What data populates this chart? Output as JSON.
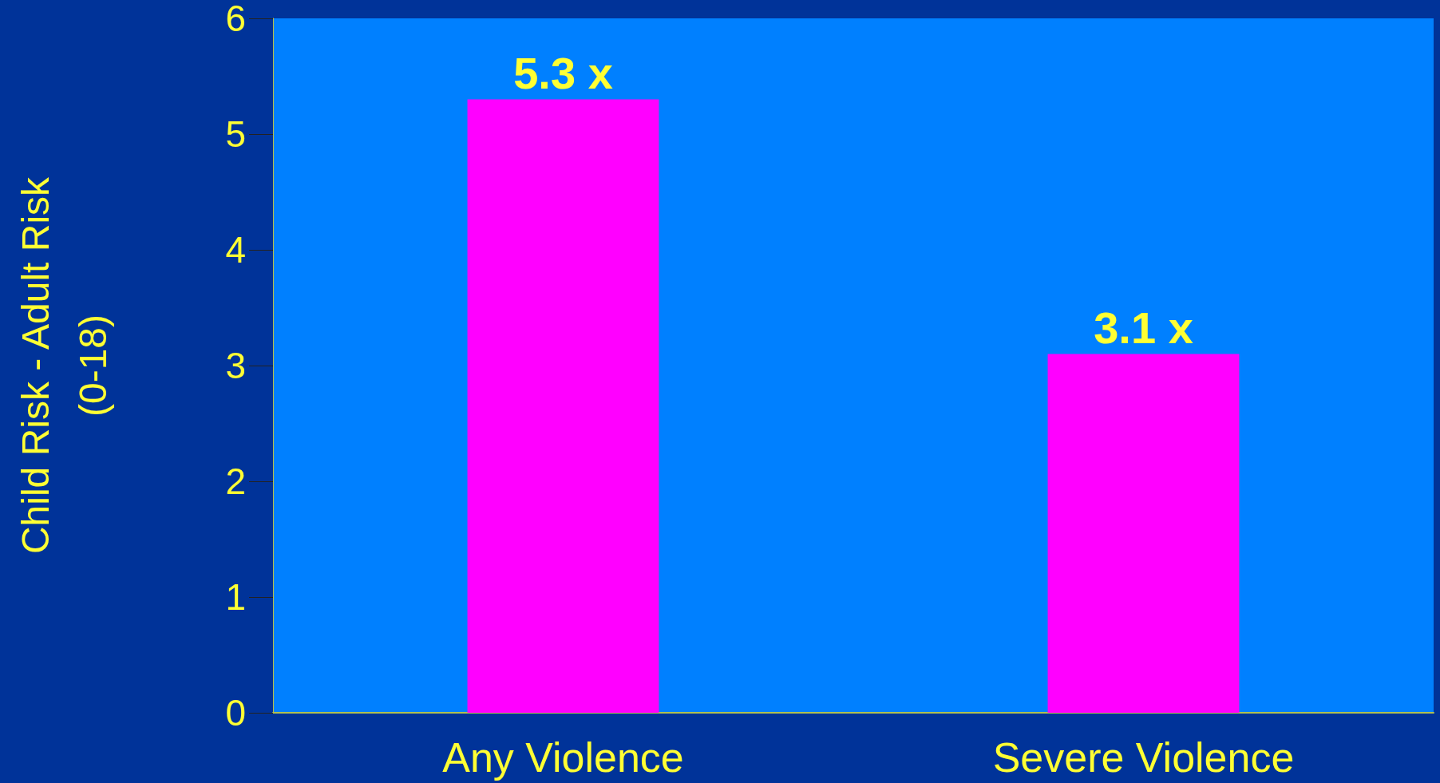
{
  "chart_data": {
    "type": "bar",
    "ylabel": "Child Risk - Adult Risk\n(0-18)",
    "categories": [
      "Any Violence",
      "Severe Violence"
    ],
    "values": [
      5.3,
      3.1
    ],
    "color": "#ff00ff",
    "value_labels": [
      "5.3 x",
      "3.1 x"
    ],
    "ylim": [
      0,
      6
    ],
    "yticks": [
      0,
      1,
      2,
      3,
      4,
      5,
      6
    ],
    "grid": false
  }
}
